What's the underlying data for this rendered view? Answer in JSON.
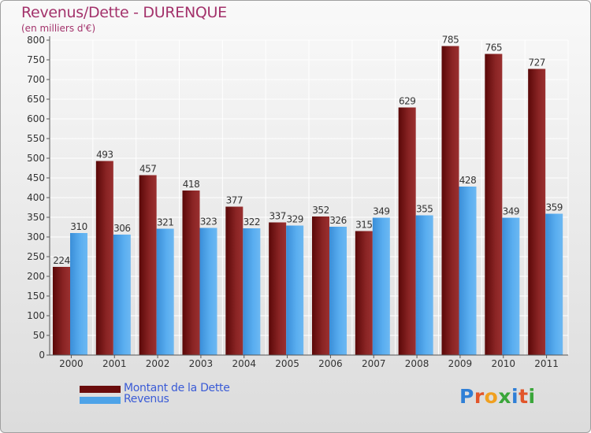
{
  "header": {
    "title": "Revenus/Dette - DURENQUE",
    "subtitle": "(en milliers d'€)"
  },
  "colors": {
    "dette": "#7a1414",
    "revenus": "#4da3e8",
    "title": "#a3326b",
    "legend_text": "#3a5bd6"
  },
  "chart_data": {
    "type": "bar",
    "title": "Revenus/Dette - DURENQUE",
    "ylabel": "(en milliers d'€)",
    "xlabel": "",
    "ylim": [
      0,
      800
    ],
    "yticks": [
      0,
      50,
      100,
      150,
      200,
      250,
      300,
      350,
      400,
      450,
      500,
      550,
      600,
      650,
      700,
      750,
      800
    ],
    "grid": true,
    "legend_position": "bottom-left",
    "categories": [
      "2000",
      "2001",
      "2002",
      "2003",
      "2004",
      "2005",
      "2006",
      "2007",
      "2008",
      "2009",
      "2010",
      "2011"
    ],
    "series": [
      {
        "name": "Montant de la Dette",
        "values": [
          224,
          493,
          457,
          418,
          377,
          337,
          352,
          315,
          629,
          785,
          765,
          727
        ]
      },
      {
        "name": "Revenus",
        "values": [
          310,
          306,
          321,
          323,
          322,
          329,
          326,
          349,
          355,
          428,
          349,
          359
        ]
      }
    ]
  },
  "legend": {
    "items": [
      "Montant de la Dette",
      "Revenus"
    ]
  },
  "logo": {
    "letters": [
      "P",
      "r",
      "o",
      "x",
      "i",
      "t",
      "i"
    ],
    "colors": [
      "#2f7fd6",
      "#e2552a",
      "#f0a020",
      "#3aa63a",
      "#2f7fd6",
      "#e2552a",
      "#3aa63a"
    ]
  }
}
